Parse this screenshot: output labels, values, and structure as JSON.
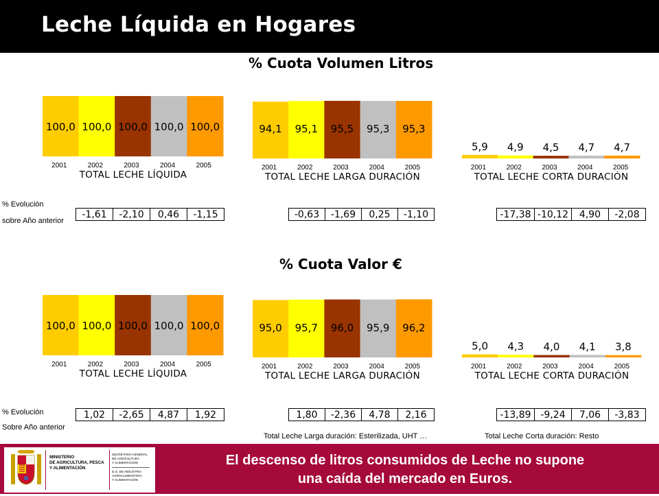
{
  "header": {
    "title": "Leche Líquida en Hogares"
  },
  "sections": [
    {
      "title": "% Cuota Volumen Litros",
      "evo_label_1": "% Evolución",
      "evo_label_2": "sobre Año anterior"
    },
    {
      "title": "% Cuota Valor €",
      "evo_label_1": "% Evolución",
      "evo_label_2": "Sobre  Año anterior"
    }
  ],
  "bar_colors": [
    "#ffcc00",
    "#ffff00",
    "#993300",
    "#c0c0c0",
    "#ff9900"
  ],
  "chart_data": [
    {
      "type": "bar",
      "title": "TOTAL LECHE LÍQUIDA",
      "categories": [
        "2001",
        "2002",
        "2003",
        "2004",
        "2005"
      ],
      "values": [
        100.0,
        100.0,
        100.0,
        100.0,
        100.0
      ],
      "labels": [
        "100,0",
        "100,0",
        "100,0",
        "100,0",
        "100,0"
      ],
      "ylim": [
        0,
        100
      ]
    },
    {
      "type": "bar",
      "title": "TOTAL LECHE LARGA DURACIÓN",
      "categories": [
        "2001",
        "2002",
        "2003",
        "2004",
        "2005"
      ],
      "values": [
        94.1,
        95.1,
        95.5,
        95.3,
        95.3
      ],
      "labels": [
        "94,1",
        "95,1",
        "95,5",
        "95,3",
        "95,3"
      ],
      "ylim": [
        0,
        100
      ]
    },
    {
      "type": "bar",
      "title": "TOTAL LECHE CORTA DURACIÓN",
      "categories": [
        "2001",
        "2002",
        "2003",
        "2004",
        "2005"
      ],
      "values": [
        5.9,
        4.9,
        4.5,
        4.7,
        4.7
      ],
      "labels": [
        "5,9",
        "4,9",
        "4,5",
        "4,7",
        "4,7"
      ],
      "ylim": [
        0,
        100
      ]
    },
    {
      "type": "bar",
      "title": "TOTAL LECHE LÍQUIDA",
      "categories": [
        "2001",
        "2002",
        "2003",
        "2004",
        "2005"
      ],
      "values": [
        100.0,
        100.0,
        100.0,
        100.0,
        100.0
      ],
      "labels": [
        "100,0",
        "100,0",
        "100,0",
        "100,0",
        "100,0"
      ],
      "ylim": [
        0,
        100
      ]
    },
    {
      "type": "bar",
      "title": "TOTAL LECHE LARGA DURACIÓN",
      "categories": [
        "2001",
        "2002",
        "2003",
        "2004",
        "2005"
      ],
      "values": [
        95.0,
        95.7,
        96.0,
        95.9,
        96.2
      ],
      "labels": [
        "95,0",
        "95,7",
        "96,0",
        "95,9",
        "96,2"
      ],
      "ylim": [
        0,
        100
      ]
    },
    {
      "type": "bar",
      "title": "TOTAL LECHE CORTA DURACIÓN",
      "categories": [
        "2001",
        "2002",
        "2003",
        "2004",
        "2005"
      ],
      "values": [
        5.0,
        4.3,
        4.0,
        4.1,
        3.8
      ],
      "labels": [
        "5,0",
        "4,3",
        "4,0",
        "4,1",
        "3,8"
      ],
      "ylim": [
        0,
        100
      ]
    }
  ],
  "evolution": [
    [
      "-1,61",
      "-2,10",
      "0,46",
      "-1,15"
    ],
    [
      "-0,63",
      "-1,69",
      "0,25",
      "-1,10"
    ],
    [
      "-17,38",
      "-10,12",
      "4,90",
      "-2,08"
    ],
    [
      "1,02",
      "-2,65",
      "4,87",
      "1,92"
    ],
    [
      "1,80",
      "-2,36",
      "4,78",
      "2,16"
    ],
    [
      "-13,89",
      "-9,24",
      "7,06",
      "-3,83"
    ]
  ],
  "notes": {
    "larga": "Total Leche Larga duración: Esterilizada, UHT …",
    "corta": "Total Leche Corta duración: Resto"
  },
  "footer": {
    "line1": "El descenso de litros consumidos de Leche no supone",
    "line2": "una caída del mercado en Euros.",
    "logo": {
      "ministry": "MINISTERIO DE AGRICULTURA, PESCA Y ALIMENTACIÓN",
      "secretaria": "SECRETARÍA GENERAL DE AGRICULTURA Y ALIMENTACIÓN",
      "dg": "D.G. DE INDUSTRIA AGROALIMENTARIA Y ALIMENTACIÓN"
    }
  }
}
